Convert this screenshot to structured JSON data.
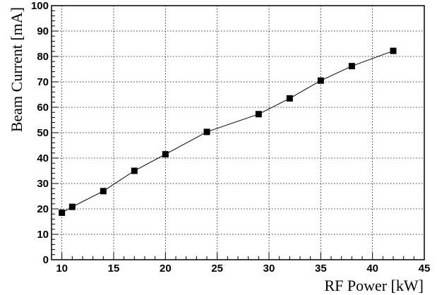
{
  "chart_data": {
    "type": "line",
    "title": "",
    "xlabel": "RF Power [kW]",
    "ylabel": "Beam Current [mA]",
    "xlim": [
      9,
      45
    ],
    "ylim": [
      0,
      100
    ],
    "xticks": [
      10,
      15,
      20,
      25,
      30,
      35,
      40,
      45
    ],
    "yticks": [
      0,
      10,
      20,
      30,
      40,
      50,
      60,
      70,
      80,
      90,
      100
    ],
    "grid": true,
    "marker": "square",
    "series": [
      {
        "x": [
          10,
          11,
          14,
          17,
          20,
          24,
          29,
          32,
          35,
          38,
          42
        ],
        "y": [
          18.5,
          20.8,
          27,
          35,
          41.5,
          50.3,
          57.3,
          63.5,
          70.5,
          76.2,
          82.2
        ]
      }
    ]
  }
}
